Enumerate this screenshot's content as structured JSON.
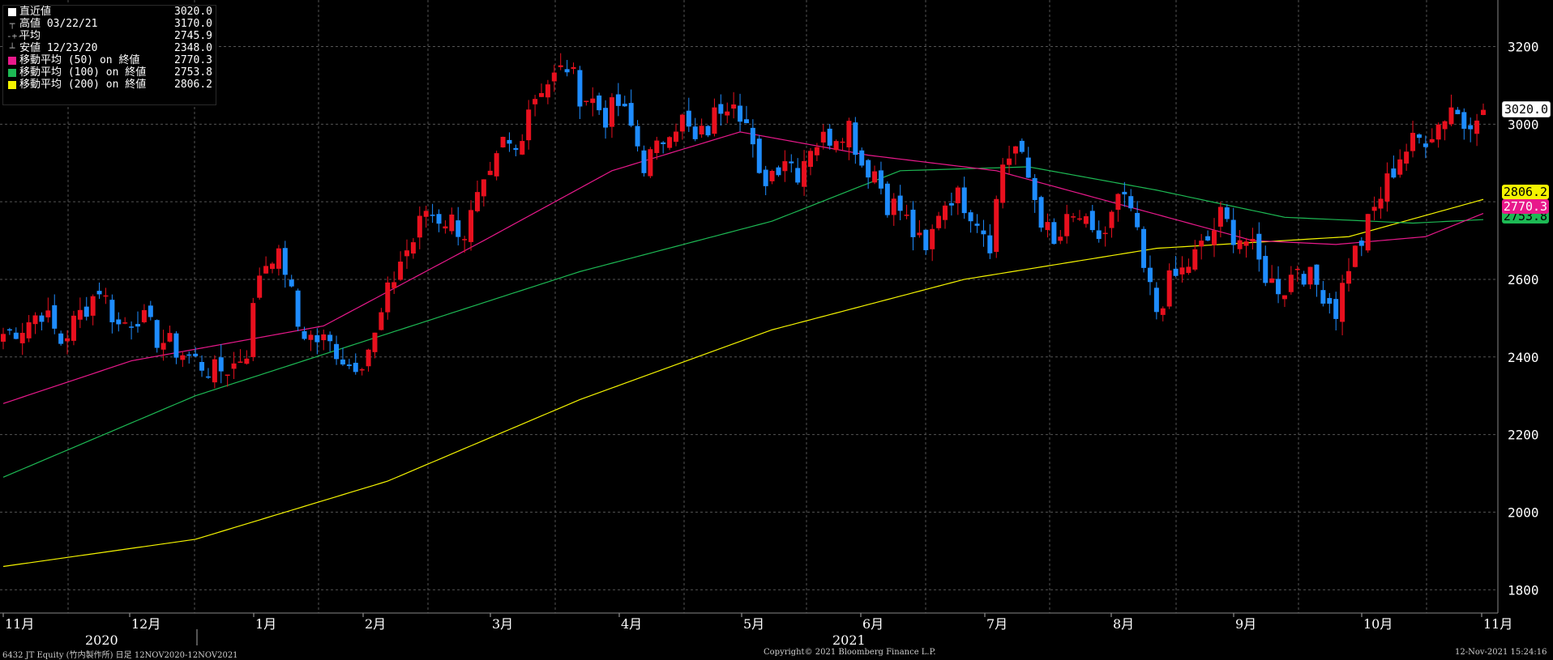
{
  "legend": {
    "rows": [
      {
        "icon": "last-price-icon",
        "label": "直近値",
        "value": "3020.0",
        "color": "#ffffff"
      },
      {
        "icon": "high-marker-icon",
        "label": "高値 03/22/21",
        "value": "3170.0",
        "color": ""
      },
      {
        "icon": "average-marker-icon",
        "label": "平均",
        "value": "2745.9",
        "color": ""
      },
      {
        "icon": "low-marker-icon",
        "label": "安値 12/23/20",
        "value": "2348.0",
        "color": ""
      },
      {
        "icon": "ma50-swatch-icon",
        "label": "移動平均 (50)  on 終値",
        "value": "2770.3",
        "color": "#e8198b"
      },
      {
        "icon": "ma100-swatch-icon",
        "label": "移動平均 (100)  on 終値",
        "value": "2753.8",
        "color": "#1db954"
      },
      {
        "icon": "ma200-swatch-icon",
        "label": "移動平均 (200)  on 終値",
        "value": "2806.2",
        "color": "#f4f400"
      }
    ]
  },
  "price_tags": {
    "last": "3020.0",
    "ma200": "2806.2",
    "ma50": "2770.3",
    "ma100": "2753.8"
  },
  "footer": {
    "left": "6432 JT Equity (竹内製作所)  日足 12NOV2020-12NOV2021",
    "center": "Copyright© 2021 Bloomberg Finance L.P.",
    "right": "12-Nov-2021 15:24:16"
  },
  "colors": {
    "up": "#e8101e",
    "down": "#1e8cff",
    "ma50": "#e8198b",
    "ma100": "#1db954",
    "ma200": "#f4f400",
    "grid": "#555555"
  },
  "chart_data": {
    "type": "candlestick",
    "ylim": [
      1740,
      3320
    ],
    "y_ticks": [
      1800,
      2000,
      2200,
      2400,
      2600,
      2800,
      3000,
      3200
    ],
    "grid": true,
    "x_labels": [
      {
        "label": "11月",
        "year": "2020"
      },
      {
        "label": "12月",
        "year": ""
      },
      {
        "label": "1月",
        "year": ""
      },
      {
        "label": "2月",
        "year": ""
      },
      {
        "label": "3月",
        "year": ""
      },
      {
        "label": "4月",
        "year": ""
      },
      {
        "label": "5月",
        "year": ""
      },
      {
        "label": "6月",
        "year": "2021"
      },
      {
        "label": "7月",
        "year": ""
      },
      {
        "label": "8月",
        "year": ""
      },
      {
        "label": "9月",
        "year": ""
      },
      {
        "label": "10月",
        "year": ""
      },
      {
        "label": "11月",
        "year": ""
      }
    ],
    "close_anchors": [
      [
        0,
        2460
      ],
      [
        3,
        2480
      ],
      [
        6,
        2520
      ],
      [
        9,
        2440
      ],
      [
        12,
        2510
      ],
      [
        15,
        2580
      ],
      [
        18,
        2480
      ],
      [
        21,
        2510
      ],
      [
        24,
        2450
      ],
      [
        27,
        2420
      ],
      [
        30,
        2390
      ],
      [
        33,
        2360
      ],
      [
        36,
        2380
      ],
      [
        38,
        2420
      ],
      [
        40,
        2620
      ],
      [
        42,
        2670
      ],
      [
        44,
        2630
      ],
      [
        46,
        2480
      ],
      [
        48,
        2450
      ],
      [
        50,
        2440
      ],
      [
        52,
        2420
      ],
      [
        54,
        2380
      ],
      [
        56,
        2400
      ],
      [
        58,
        2450
      ],
      [
        60,
        2560
      ],
      [
        62,
        2650
      ],
      [
        64,
        2700
      ],
      [
        66,
        2780
      ],
      [
        68,
        2760
      ],
      [
        70,
        2750
      ],
      [
        72,
        2720
      ],
      [
        74,
        2800
      ],
      [
        76,
        2850
      ],
      [
        78,
        2950
      ],
      [
        80,
        2930
      ],
      [
        82,
        3050
      ],
      [
        84,
        3100
      ],
      [
        86,
        3120
      ],
      [
        88,
        3150
      ],
      [
        90,
        3080
      ],
      [
        92,
        3060
      ],
      [
        94,
        3020
      ],
      [
        96,
        3050
      ],
      [
        98,
        2990
      ],
      [
        100,
        2900
      ],
      [
        102,
        2930
      ],
      [
        104,
        3000
      ],
      [
        106,
        3010
      ],
      [
        108,
        2950
      ],
      [
        110,
        2990
      ],
      [
        112,
        3050
      ],
      [
        114,
        3080
      ],
      [
        116,
        3000
      ],
      [
        118,
        2850
      ],
      [
        120,
        2880
      ],
      [
        122,
        2920
      ],
      [
        124,
        2880
      ],
      [
        126,
        2950
      ],
      [
        128,
        2960
      ],
      [
        130,
        2980
      ],
      [
        132,
        3000
      ],
      [
        134,
        2900
      ],
      [
        136,
        2880
      ],
      [
        138,
        2800
      ],
      [
        140,
        2780
      ],
      [
        142,
        2720
      ],
      [
        144,
        2660
      ],
      [
        146,
        2780
      ],
      [
        148,
        2820
      ],
      [
        150,
        2800
      ],
      [
        152,
        2760
      ],
      [
        154,
        2700
      ],
      [
        156,
        2900
      ],
      [
        158,
        2940
      ],
      [
        160,
        2860
      ],
      [
        162,
        2760
      ],
      [
        164,
        2680
      ],
      [
        166,
        2740
      ],
      [
        168,
        2760
      ],
      [
        170,
        2700
      ],
      [
        172,
        2720
      ],
      [
        174,
        2800
      ],
      [
        176,
        2780
      ],
      [
        178,
        2620
      ],
      [
        180,
        2520
      ],
      [
        182,
        2590
      ],
      [
        184,
        2620
      ],
      [
        186,
        2660
      ],
      [
        188,
        2700
      ],
      [
        190,
        2760
      ],
      [
        192,
        2720
      ],
      [
        194,
        2700
      ],
      [
        196,
        2640
      ],
      [
        198,
        2590
      ],
      [
        200,
        2580
      ],
      [
        202,
        2640
      ],
      [
        204,
        2600
      ],
      [
        206,
        2570
      ],
      [
        208,
        2520
      ],
      [
        210,
        2640
      ],
      [
        212,
        2700
      ],
      [
        214,
        2780
      ],
      [
        216,
        2850
      ],
      [
        218,
        2920
      ],
      [
        220,
        2950
      ],
      [
        222,
        2970
      ],
      [
        224,
        3000
      ],
      [
        226,
        3050
      ],
      [
        228,
        3000
      ],
      [
        230,
        3040
      ],
      [
        231,
        3020
      ]
    ]
  }
}
